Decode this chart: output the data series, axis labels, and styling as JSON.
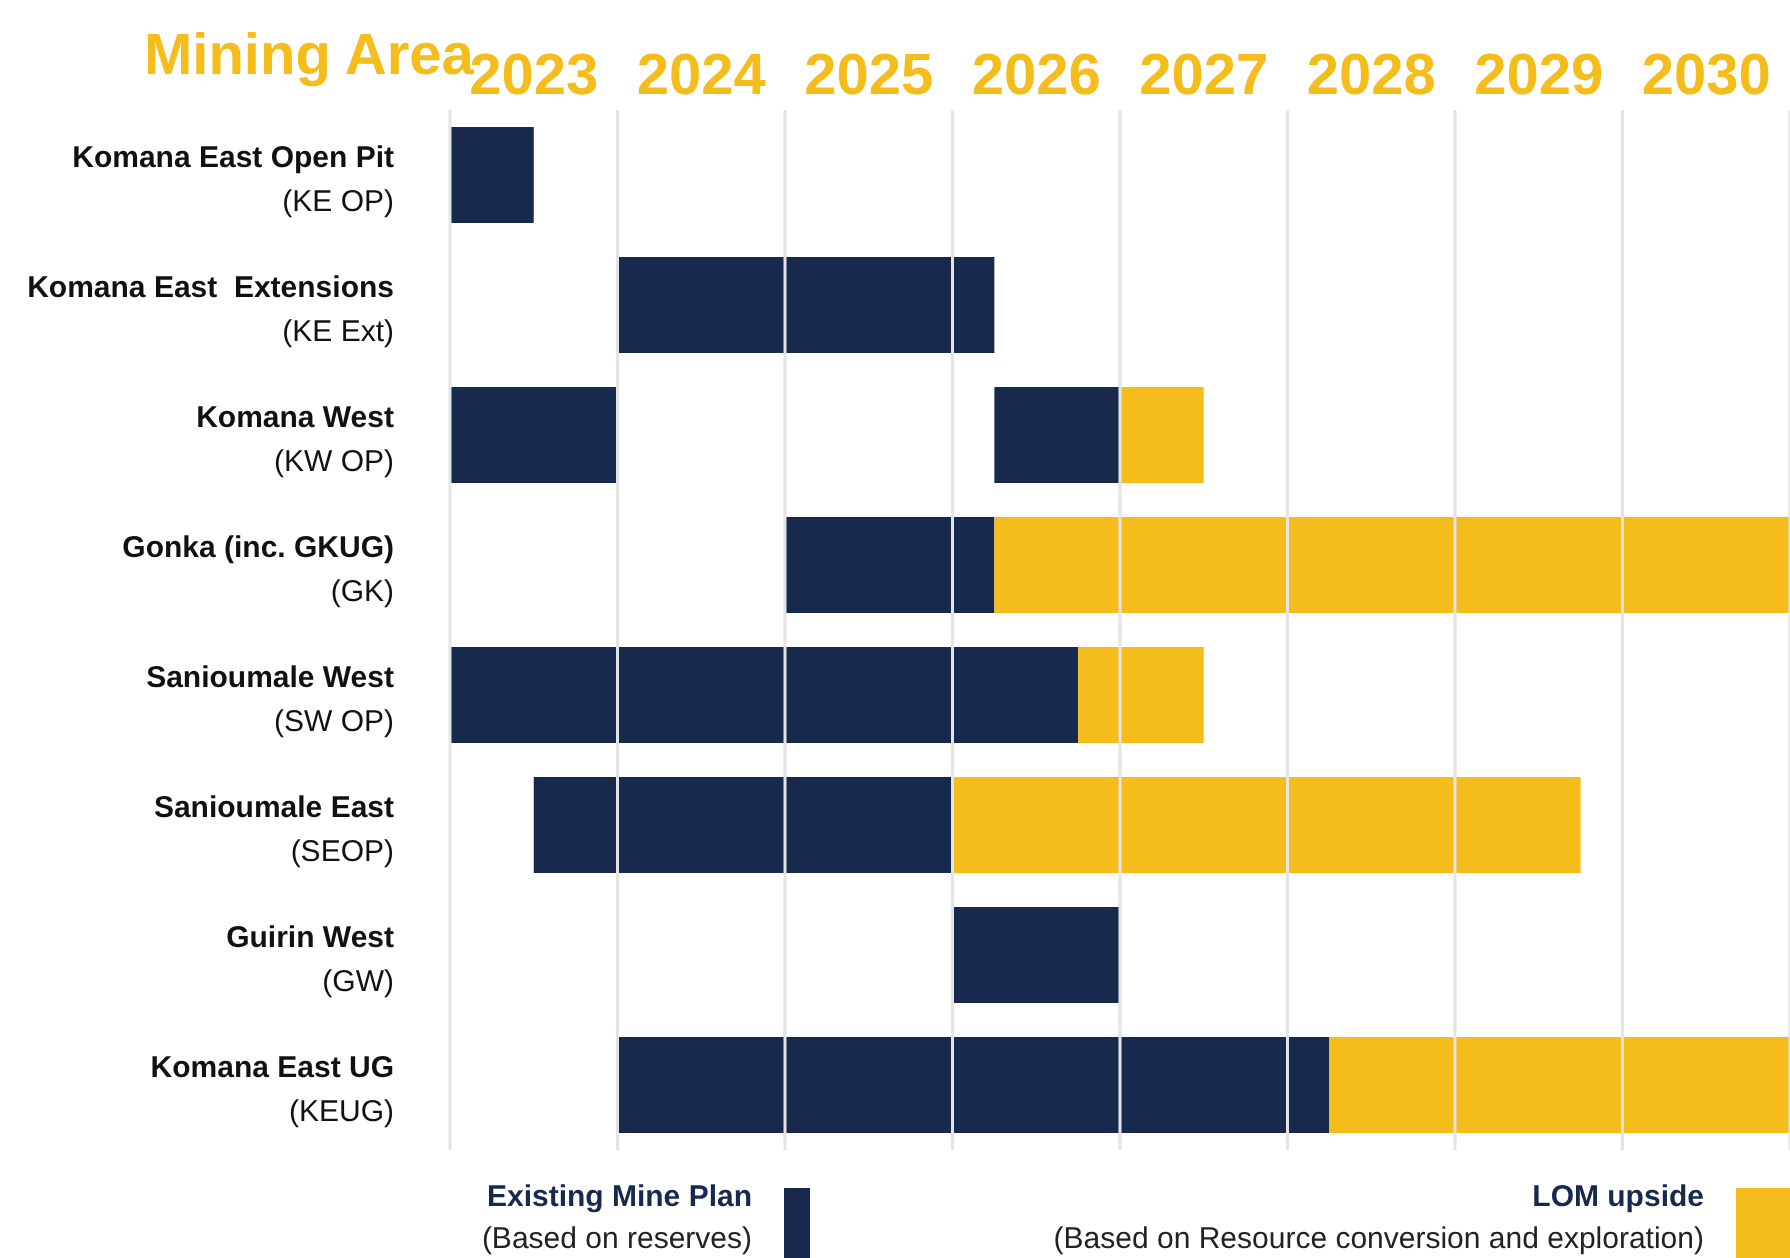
{
  "chart_data": {
    "type": "bar",
    "orientation": "horizontal",
    "ylabel": "Mining Area",
    "categories": [
      "Komana East Open Pit (KE OP)",
      "Komana East  Extensions (KE Ext)",
      "Komana West (KW OP)",
      "Gonka (inc. GKUG) (GK)",
      "Sanioumale West (SW OP)",
      "Sanioumale East (SEOP)",
      "Guirin West (GW)",
      "Komana East UG (KEUG)"
    ],
    "series": [
      {
        "name": "Existing Mine Plan (Based on reserves)",
        "color": "#172a4e",
        "base": [
          2023,
          2024,
          2023,
          2025,
          2023,
          2023.5,
          2026,
          2024
        ],
        "values": [
          0.5,
          2.25,
          1,
          1.25,
          3.75,
          2.5,
          1,
          4.25
        ]
      },
      {
        "color": "#172a4e",
        "base": [
          null,
          null,
          2026.25,
          null,
          null,
          null,
          null,
          null
        ],
        "values": [
          null,
          null,
          0.75,
          null,
          null,
          null,
          null,
          null
        ]
      },
      {
        "name": "LOM upside (Based on Resource conversion and exploration)",
        "color": "#f5bd1b",
        "base": [
          null,
          null,
          2027,
          2026.25,
          2026.75,
          2026,
          null,
          2028.25
        ],
        "values": [
          null,
          null,
          0.5,
          4.75,
          0.75,
          3.75,
          null,
          2.75
        ]
      }
    ],
    "xlim": [
      2023,
      2031
    ],
    "xticks": [
      {
        "value": 2023,
        "label": null
      },
      {
        "value": 2023.5,
        "label": "2023"
      },
      {
        "value": 2024,
        "label": null
      },
      {
        "value": 2024.5,
        "label": "2024"
      },
      {
        "value": 2025,
        "label": null
      },
      {
        "value": 2025.5,
        "label": "2025"
      },
      {
        "value": 2026,
        "label": null
      },
      {
        "value": 2026.5,
        "label": "2026"
      },
      {
        "value": 2027,
        "label": null
      },
      {
        "value": 2027.5,
        "label": "2027"
      },
      {
        "value": 2028,
        "label": null
      },
      {
        "value": 2028.5,
        "label": "2028"
      },
      {
        "value": 2029,
        "label": null
      },
      {
        "value": 2029.5,
        "label": "2029"
      },
      {
        "value": 2030,
        "label": null
      },
      {
        "value": 2030.5,
        "label": "2030"
      },
      {
        "value": 2031,
        "label": null
      }
    ],
    "grid": "x",
    "legend": "bottom"
  }
}
